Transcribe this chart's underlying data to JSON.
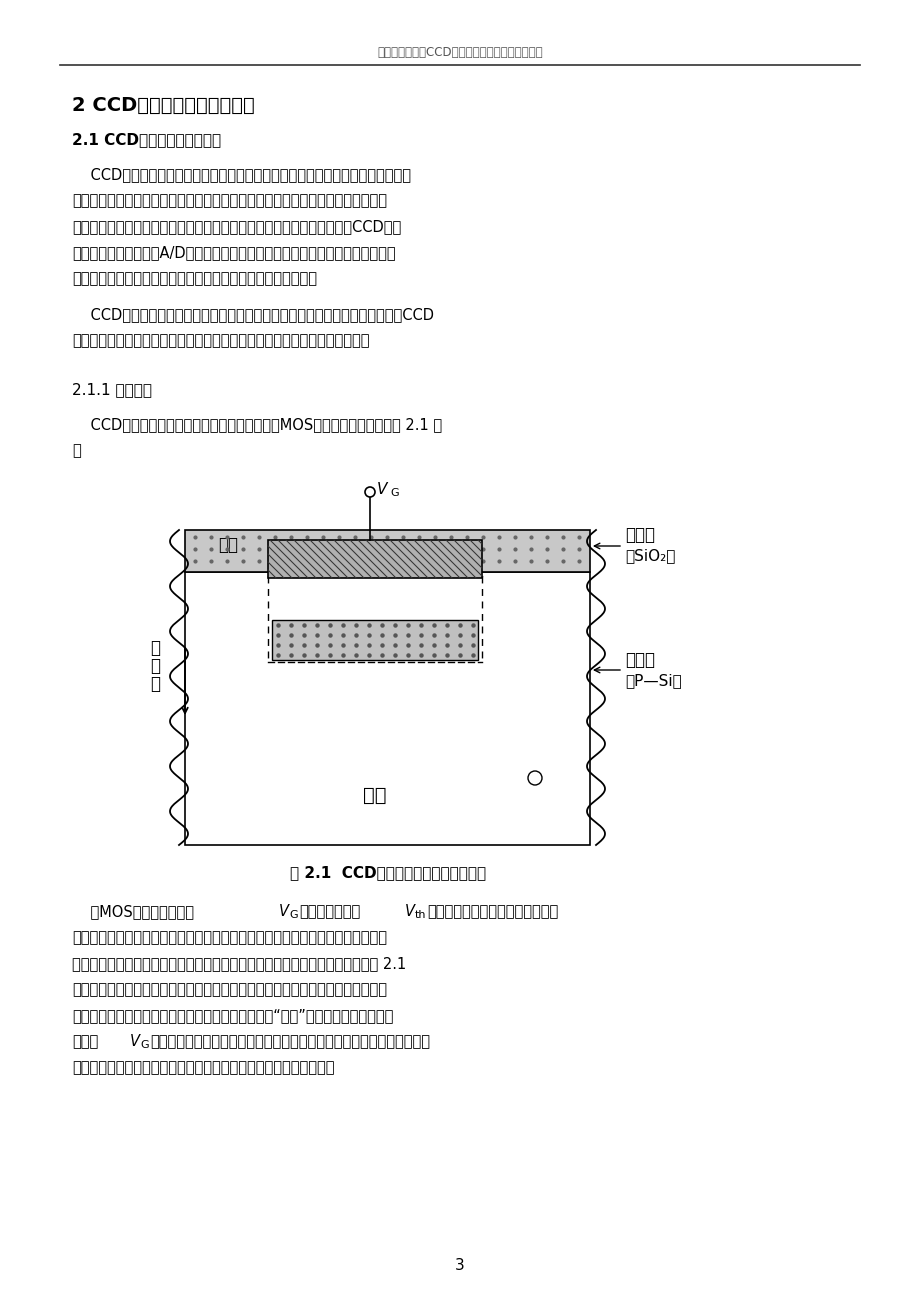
{
  "header_text": "武汉理工大学《CCD图像传感器》技术报告说明书",
  "title_section": "2 CCD图像传感器的成像原理",
  "subtitle_section": "2.1 CCD图像传感器工作原理",
  "sub2_title": "2.1.1 电荷存储",
  "fig_caption": "图 2.1  CCD光敏元件的结构部分剖面图",
  "page_number": "3",
  "background_color": "#ffffff",
  "text_color": "#000000",
  "header_color": "#555555",
  "para1_lines": [
    "    CCD由大量独立的光敏元件组成，每个光敏元件也称一像素。这些光敏元件通常",
    "按照矩阵排列，光线通过镜头照射到光电二极管上，并被转化为电荷，从而使图像",
    "光信号转化为电信号，每个元件上的电荷量取决于所受到的光照强度。当CCD工作",
    "时，将各个像素信号经A/D转换器转换成数字信号，再将其以一定格式压缩后存入",
    "缓存，之后再根据不同需求将其以数字信号或者视频信号输出。"
  ],
  "para2_lines": [
    "    CCD的突出特点是以电荷为信号，基本功能是电荷的存储和电荷的转移，故，CCD",
    "的工作过程主要是信号电荷的存储、转移、检测以及图像信息还原四个阶段。"
  ],
  "para3_lines": [
    "    CCD由排列规则的金属物、氧化物、半导体（MOS）电容阵列组成，如图 2.1 所",
    "示"
  ],
  "para4_lines": [
    "围电子就迅速聚集在电极下半导体表面处。而由于聚集在这的电子势能较低，根据",
    "相关资料，我们可以将这部分描述为半导体表面形成了对于电子的势阱，正如图 2.1",
    "所示。或者根据习惯，将这个势阱想象成一个容器，而聚集在那里的电子则是存于",
    "容器中的液体。势阱的积累电子的容量取决于势阱的“深度”，而表面势的大小近似"
  ],
  "para4_vg2_line": "成正比，势阱被填满，就是说在半导体表面的电子与表面势之间达到平衡",
  "para4_last": "状态，不再向电极下半导体表面聚集。这样就完成了对电荷的存储。"
}
